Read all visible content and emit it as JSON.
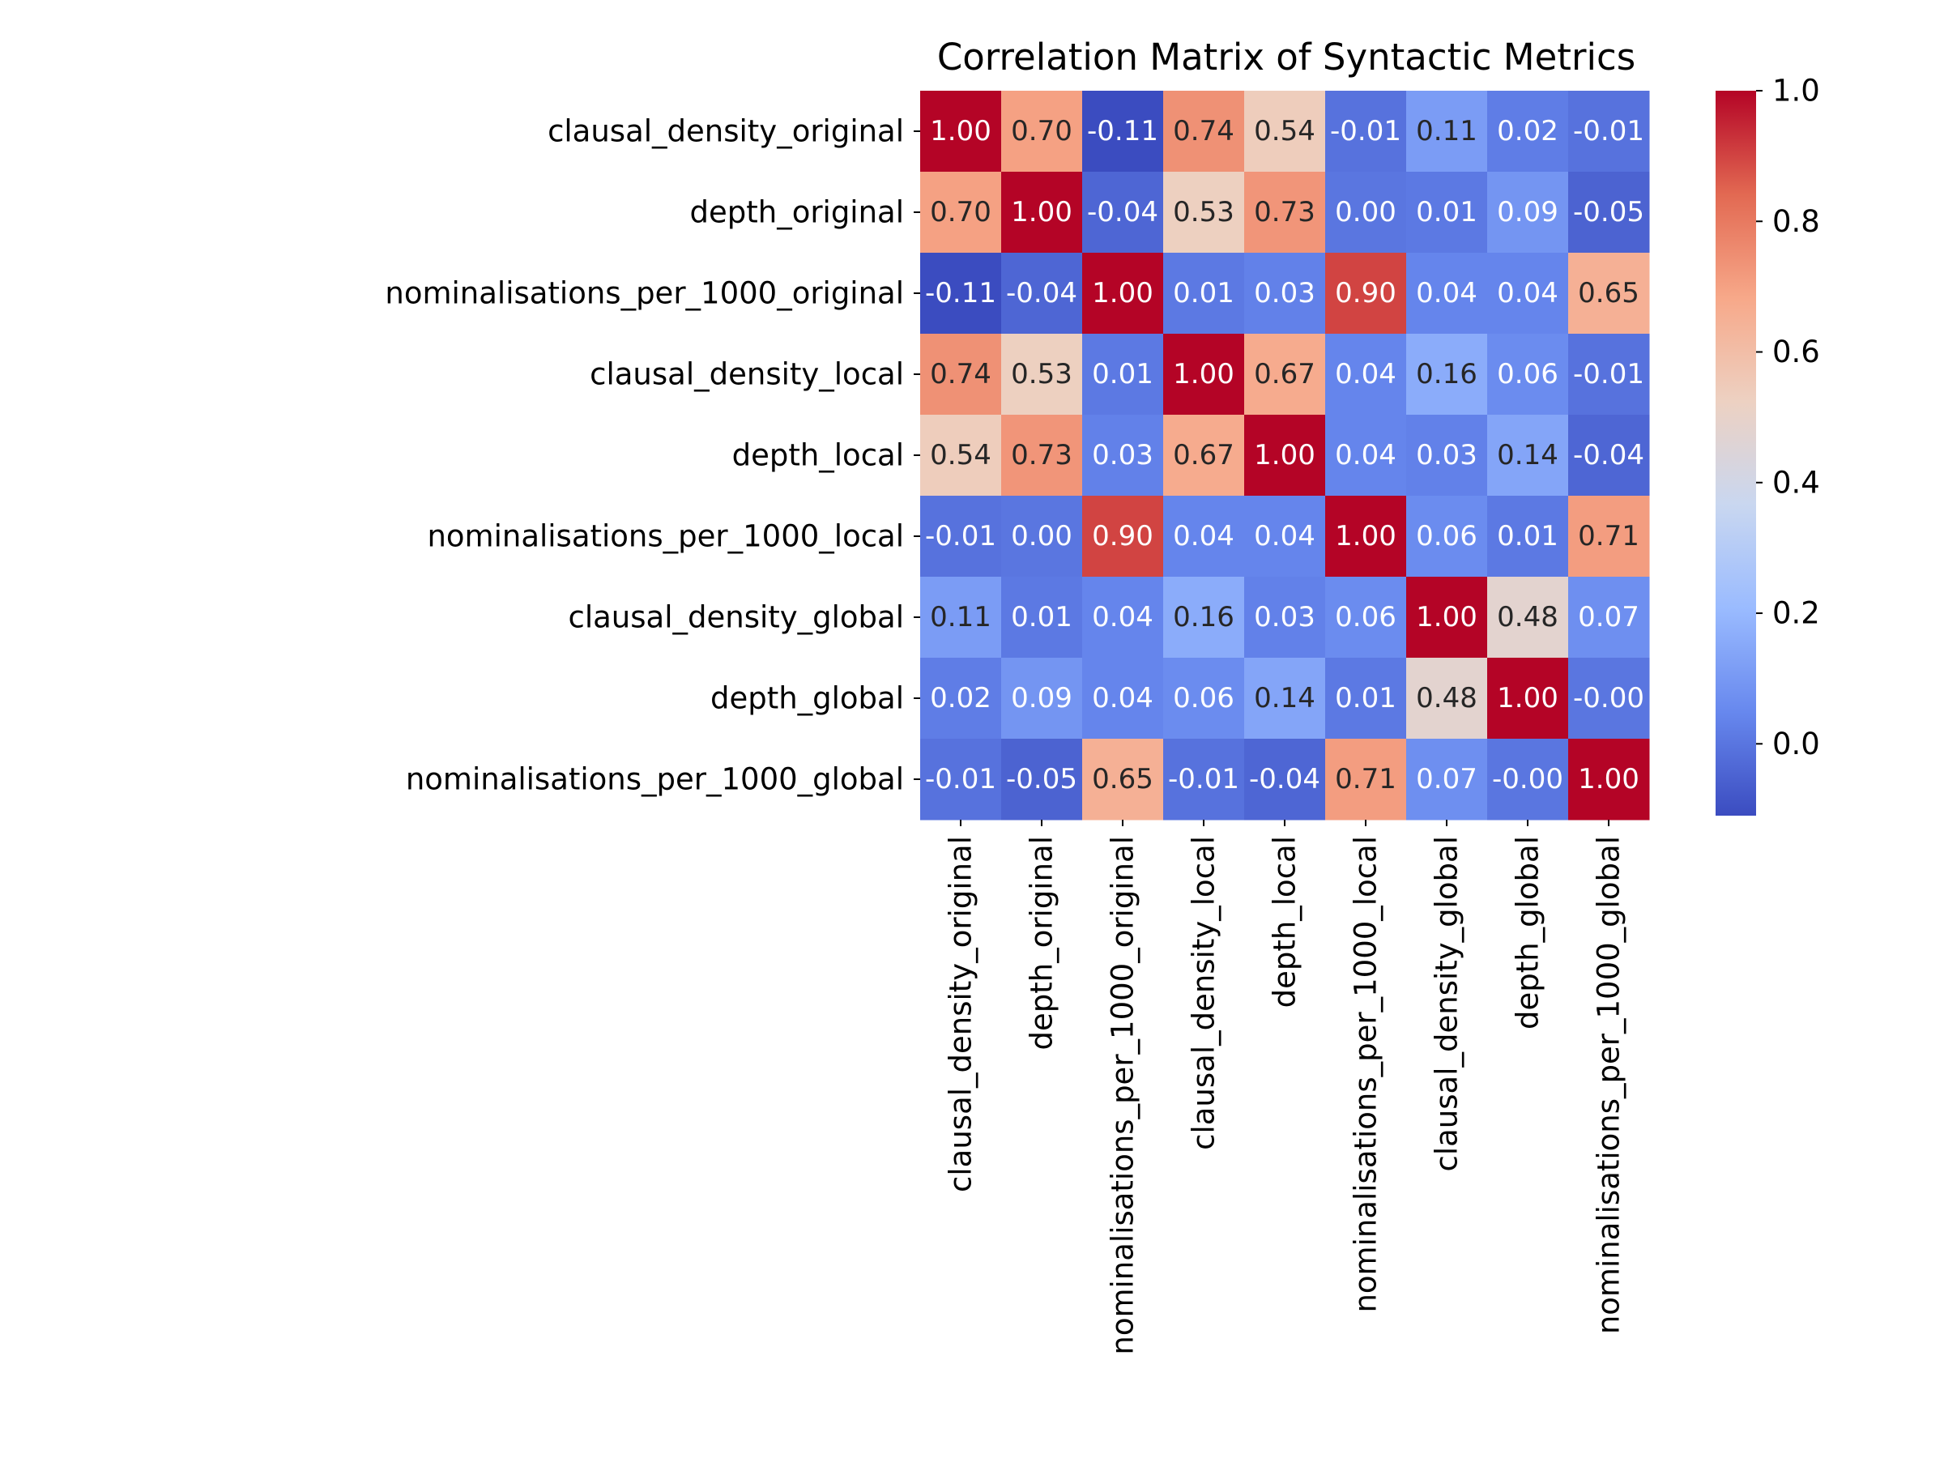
{
  "chart_data": {
    "type": "heatmap",
    "title": "Correlation Matrix of Syntactic Metrics",
    "xlabel": "",
    "ylabel": "",
    "labels": [
      "clausal_density_original",
      "depth_original",
      "nominalisations_per_1000_original",
      "clausal_density_local",
      "depth_local",
      "nominalisations_per_1000_local",
      "clausal_density_global",
      "depth_global",
      "nominalisations_per_1000_global"
    ],
    "values": [
      [
        1.0,
        0.7,
        -0.11,
        0.74,
        0.54,
        -0.01,
        0.11,
        0.02,
        -0.01
      ],
      [
        0.7,
        1.0,
        -0.04,
        0.53,
        0.73,
        0.0,
        0.01,
        0.09,
        -0.05
      ],
      [
        -0.11,
        -0.04,
        1.0,
        0.01,
        0.03,
        0.9,
        0.04,
        0.04,
        0.65
      ],
      [
        0.74,
        0.53,
        0.01,
        1.0,
        0.67,
        0.04,
        0.16,
        0.06,
        -0.01
      ],
      [
        0.54,
        0.73,
        0.03,
        0.67,
        1.0,
        0.04,
        0.03,
        0.14,
        -0.04
      ],
      [
        -0.01,
        0.0,
        0.9,
        0.04,
        0.04,
        1.0,
        0.06,
        0.01,
        0.71
      ],
      [
        0.11,
        0.01,
        0.04,
        0.16,
        0.03,
        0.06,
        1.0,
        0.48,
        0.07
      ],
      [
        0.02,
        0.09,
        0.04,
        0.06,
        0.14,
        0.01,
        0.48,
        1.0,
        -0.0
      ],
      [
        -0.01,
        -0.05,
        0.65,
        -0.01,
        -0.04,
        0.71,
        0.07,
        -0.0,
        1.0
      ]
    ],
    "cell_labels": [
      [
        "1.00",
        "0.70",
        "-0.11",
        "0.74",
        "0.54",
        "-0.01",
        "0.11",
        "0.02",
        "-0.01"
      ],
      [
        "0.70",
        "1.00",
        "-0.04",
        "0.53",
        "0.73",
        "0.00",
        "0.01",
        "0.09",
        "-0.05"
      ],
      [
        "-0.11",
        "-0.04",
        "1.00",
        "0.01",
        "0.03",
        "0.90",
        "0.04",
        "0.04",
        "0.65"
      ],
      [
        "0.74",
        "0.53",
        "0.01",
        "1.00",
        "0.67",
        "0.04",
        "0.16",
        "0.06",
        "-0.01"
      ],
      [
        "0.54",
        "0.73",
        "0.03",
        "0.67",
        "1.00",
        "0.04",
        "0.03",
        "0.14",
        "-0.04"
      ],
      [
        "-0.01",
        "0.00",
        "0.90",
        "0.04",
        "0.04",
        "1.00",
        "0.06",
        "0.01",
        "0.71"
      ],
      [
        "0.11",
        "0.01",
        "0.04",
        "0.16",
        "0.03",
        "0.06",
        "1.00",
        "0.48",
        "0.07"
      ],
      [
        "0.02",
        "0.09",
        "0.04",
        "0.06",
        "0.14",
        "0.01",
        "0.48",
        "1.00",
        "-0.00"
      ],
      [
        "-0.01",
        "-0.05",
        "0.65",
        "-0.01",
        "-0.04",
        "0.71",
        "0.07",
        "-0.00",
        "1.00"
      ]
    ],
    "colormap": "coolwarm",
    "colormap_stops": [
      "#3b4cc0",
      "#6788ee",
      "#9abbff",
      "#c9d7f0",
      "#edd1c2",
      "#f7a889",
      "#e26952",
      "#b40426"
    ],
    "vmin": -0.11,
    "vmax": 1.0,
    "colorbar_ticks": [
      0.0,
      0.2,
      0.4,
      0.6,
      0.8,
      1.0
    ],
    "colorbar_tick_labels": [
      "0.0",
      "0.2",
      "0.4",
      "0.6",
      "0.8",
      "1.0"
    ],
    "grid": false,
    "legend": "colorbar-right"
  }
}
